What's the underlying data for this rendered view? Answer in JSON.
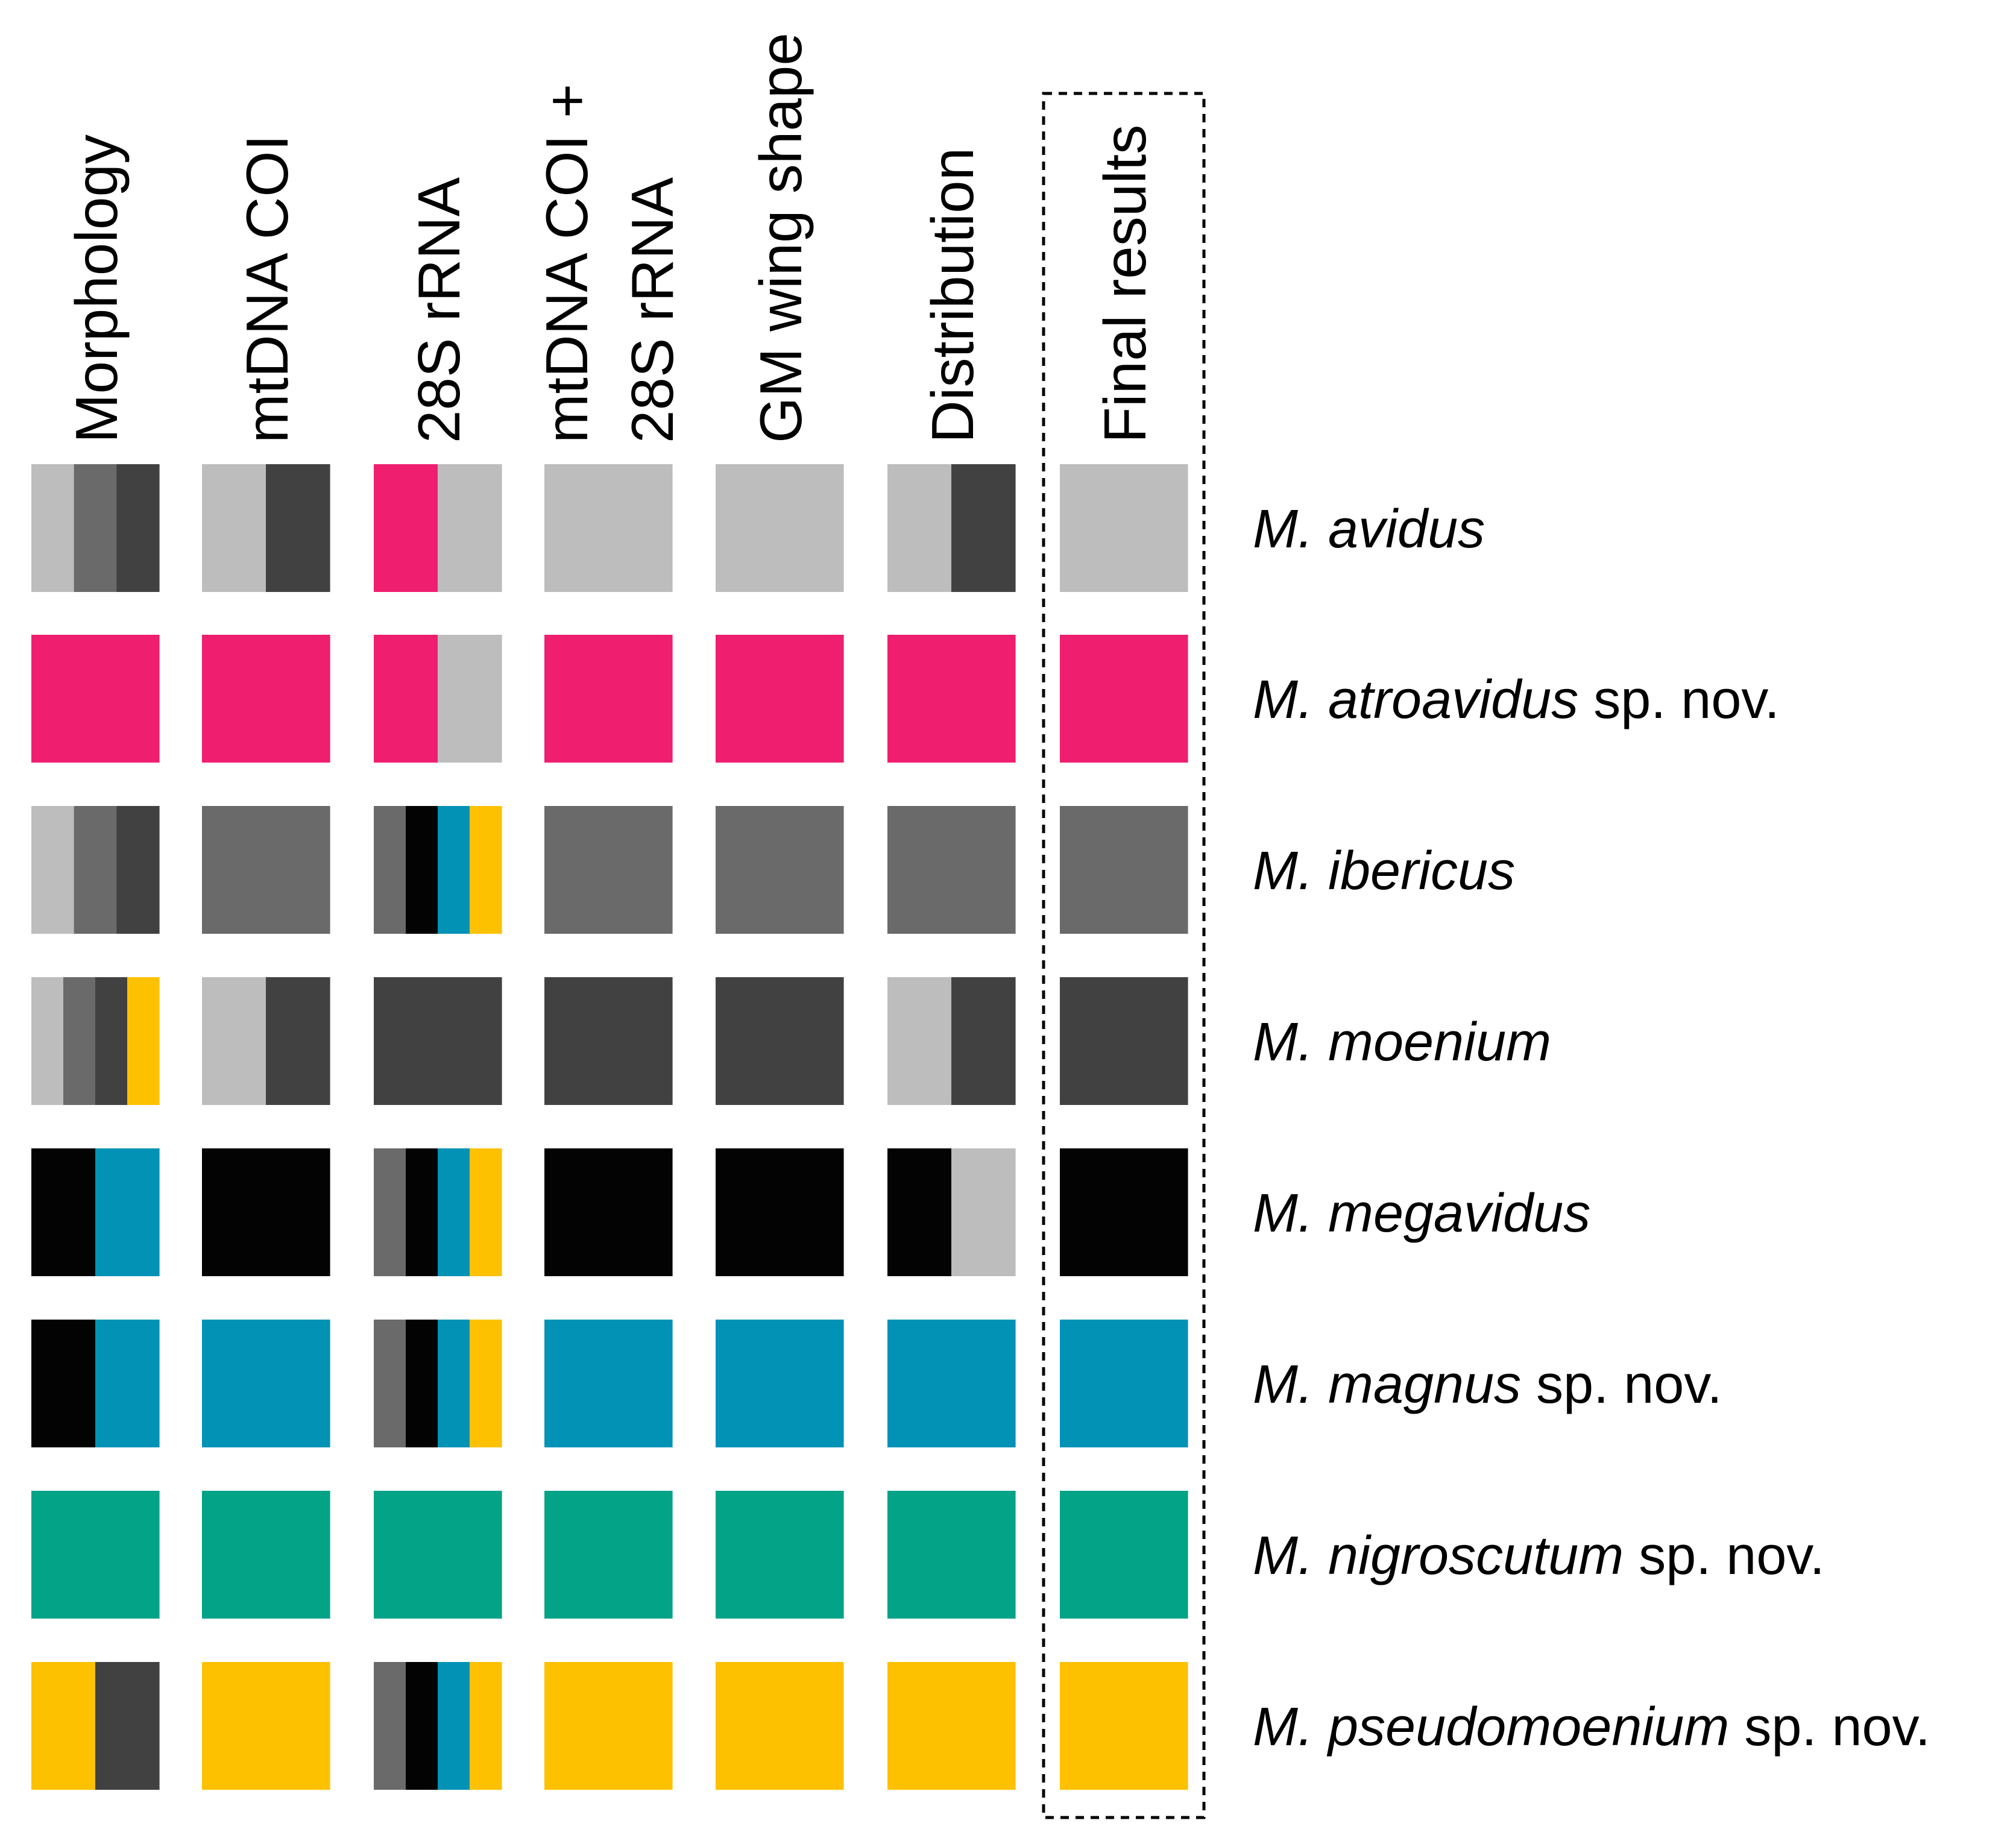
{
  "palette": {
    "light_gray": "#bdbdbd",
    "mid_gray": "#6a6a6a",
    "dark_gray": "#414141",
    "black": "#030303",
    "pink": "#ef1e6e",
    "blue": "#0292b6",
    "teal": "#02a386",
    "yellow": "#fdc100"
  },
  "columns": [
    {
      "lines": [
        "Morphology"
      ]
    },
    {
      "lines": [
        "mtDNA COI"
      ]
    },
    {
      "lines": [
        "28S rRNA"
      ]
    },
    {
      "lines": [
        "mtDNA COI +",
        "28S rRNA"
      ]
    },
    {
      "lines": [
        "GM wing shape"
      ]
    },
    {
      "lines": [
        "Distribution"
      ]
    },
    {
      "lines": [
        "Final results"
      ],
      "highlighted": true
    }
  ],
  "rows": [
    {
      "species": "M. avidus",
      "suffix": "",
      "cells": [
        [
          "light_gray",
          "mid_gray",
          "dark_gray"
        ],
        [
          "light_gray",
          "dark_gray"
        ],
        [
          "pink",
          "light_gray"
        ],
        [
          "light_gray"
        ],
        [
          "light_gray"
        ],
        [
          "light_gray",
          "dark_gray"
        ],
        [
          "light_gray"
        ]
      ]
    },
    {
      "species": "M. atroavidus",
      "suffix": " sp. nov.",
      "cells": [
        [
          "pink"
        ],
        [
          "pink"
        ],
        [
          "pink",
          "light_gray"
        ],
        [
          "pink"
        ],
        [
          "pink"
        ],
        [
          "pink"
        ],
        [
          "pink"
        ]
      ]
    },
    {
      "species": "M. ibericus",
      "suffix": "",
      "cells": [
        [
          "light_gray",
          "mid_gray",
          "dark_gray"
        ],
        [
          "mid_gray"
        ],
        [
          "mid_gray",
          "black",
          "blue",
          "yellow"
        ],
        [
          "mid_gray"
        ],
        [
          "mid_gray"
        ],
        [
          "mid_gray"
        ],
        [
          "mid_gray"
        ]
      ]
    },
    {
      "species": "M. moenium",
      "suffix": "",
      "cells": [
        [
          "light_gray",
          "mid_gray",
          "dark_gray",
          "yellow"
        ],
        [
          "light_gray",
          "dark_gray"
        ],
        [
          "dark_gray"
        ],
        [
          "dark_gray"
        ],
        [
          "dark_gray"
        ],
        [
          "light_gray",
          "dark_gray"
        ],
        [
          "dark_gray"
        ]
      ]
    },
    {
      "species": "M. megavidus",
      "suffix": "",
      "cells": [
        [
          "black",
          "blue"
        ],
        [
          "black"
        ],
        [
          "mid_gray",
          "black",
          "blue",
          "yellow"
        ],
        [
          "black"
        ],
        [
          "black"
        ],
        [
          "black",
          "light_gray"
        ],
        [
          "black"
        ]
      ]
    },
    {
      "species": "M. magnus",
      "suffix": " sp. nov.",
      "cells": [
        [
          "black",
          "blue"
        ],
        [
          "blue"
        ],
        [
          "mid_gray",
          "black",
          "blue",
          "yellow"
        ],
        [
          "blue"
        ],
        [
          "blue"
        ],
        [
          "blue"
        ],
        [
          "blue"
        ]
      ]
    },
    {
      "species": "M. nigroscutum",
      "suffix": " sp. nov.",
      "cells": [
        [
          "teal"
        ],
        [
          "teal"
        ],
        [
          "teal"
        ],
        [
          "teal"
        ],
        [
          "teal"
        ],
        [
          "teal"
        ],
        [
          "teal"
        ]
      ]
    },
    {
      "species": "M. pseudomoenium",
      "suffix": " sp. nov.",
      "cells": [
        [
          "yellow",
          "dark_gray"
        ],
        [
          "yellow"
        ],
        [
          "mid_gray",
          "black",
          "blue",
          "yellow"
        ],
        [
          "yellow"
        ],
        [
          "yellow"
        ],
        [
          "yellow"
        ],
        [
          "yellow"
        ]
      ]
    }
  ]
}
